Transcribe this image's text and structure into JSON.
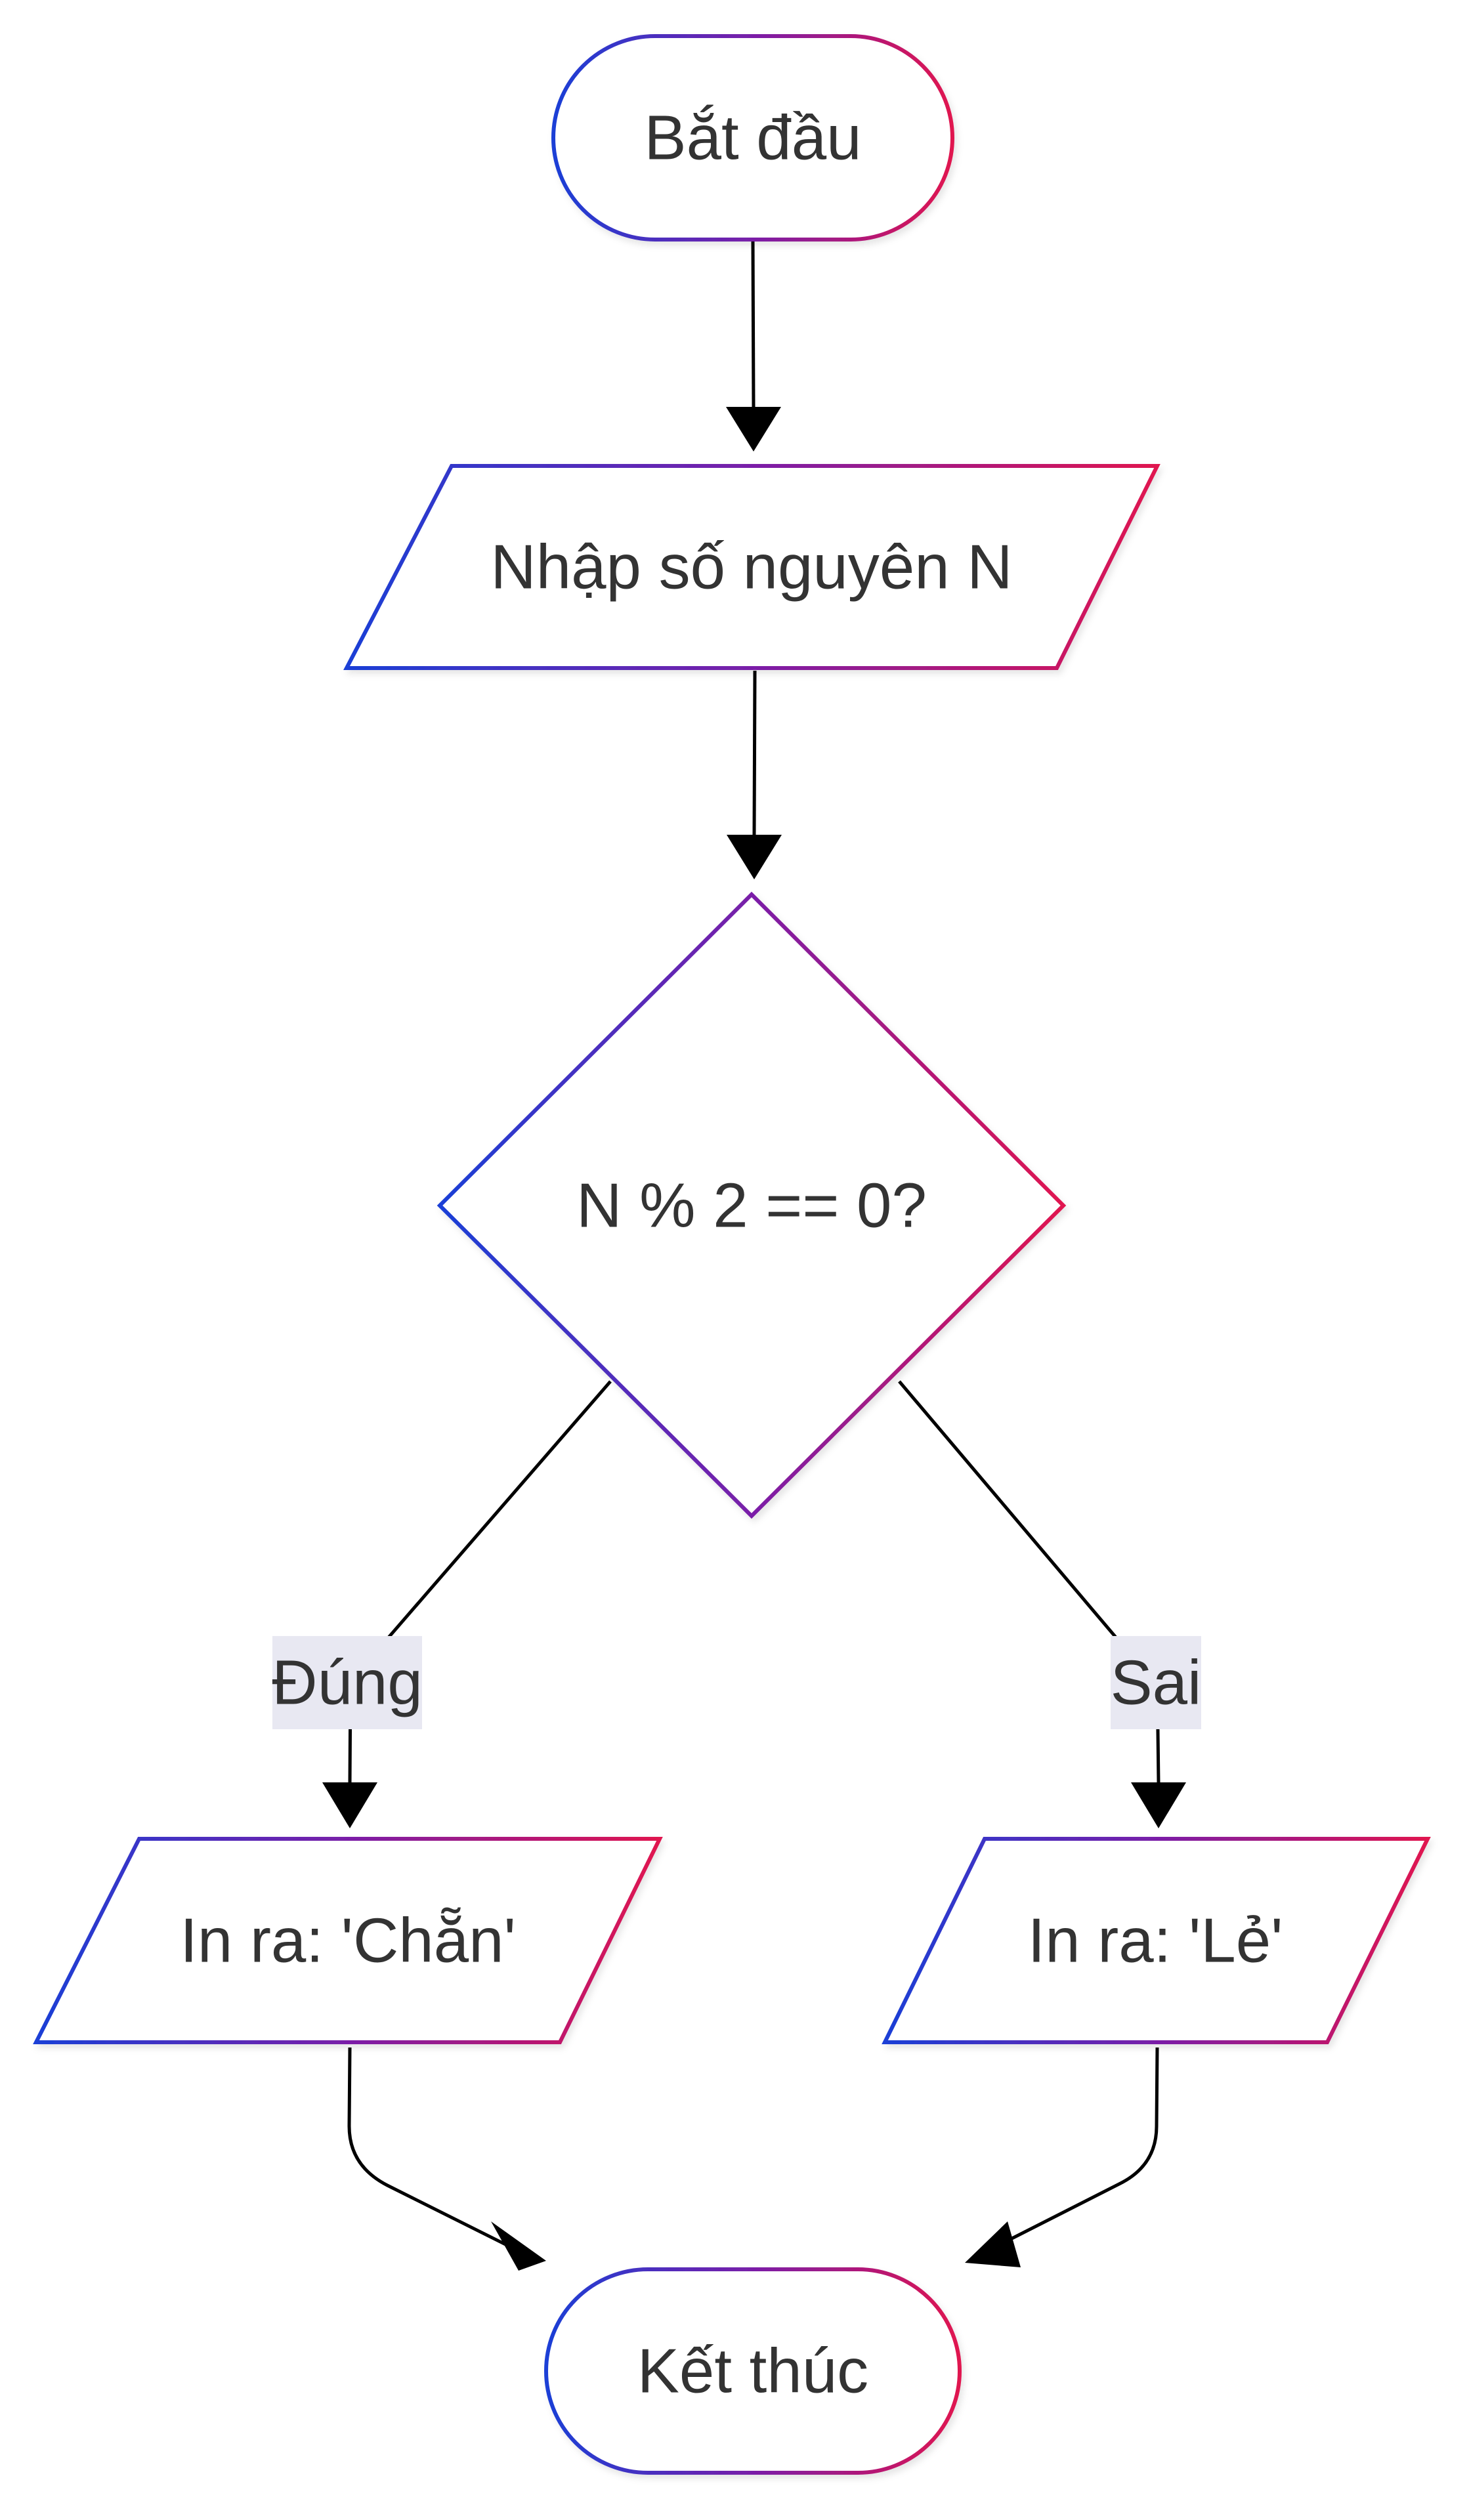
{
  "diagram": {
    "nodes": {
      "start": {
        "label": "Bắt đầu",
        "shape": "terminal"
      },
      "input": {
        "label": "Nhập số nguyên N",
        "shape": "parallelogram"
      },
      "decision": {
        "label": "N % 2 == 0?",
        "shape": "diamond"
      },
      "output_even": {
        "label": "In ra: 'Chẵn'",
        "shape": "parallelogram"
      },
      "output_odd": {
        "label": "In ra: 'Lẻ'",
        "shape": "parallelogram"
      },
      "end": {
        "label": "Kết thúc",
        "shape": "terminal"
      }
    },
    "edges": {
      "start_to_input": {
        "from": "start",
        "to": "input",
        "label": ""
      },
      "input_to_decision": {
        "from": "input",
        "to": "decision",
        "label": ""
      },
      "decision_to_even": {
        "from": "decision",
        "to": "output_even",
        "label": "Đúng"
      },
      "decision_to_odd": {
        "from": "decision",
        "to": "output_odd",
        "label": "Sai"
      },
      "even_to_end": {
        "from": "output_even",
        "to": "end",
        "label": ""
      },
      "odd_to_end": {
        "from": "output_odd",
        "to": "end",
        "label": ""
      }
    },
    "colors": {
      "gradient_start": "#1a3fd6",
      "gradient_mid": "#7a1fa8",
      "gradient_end": "#e0134f",
      "edge": "#000000",
      "text": "#333333",
      "edge_label_background": "#e8e8f2"
    }
  }
}
